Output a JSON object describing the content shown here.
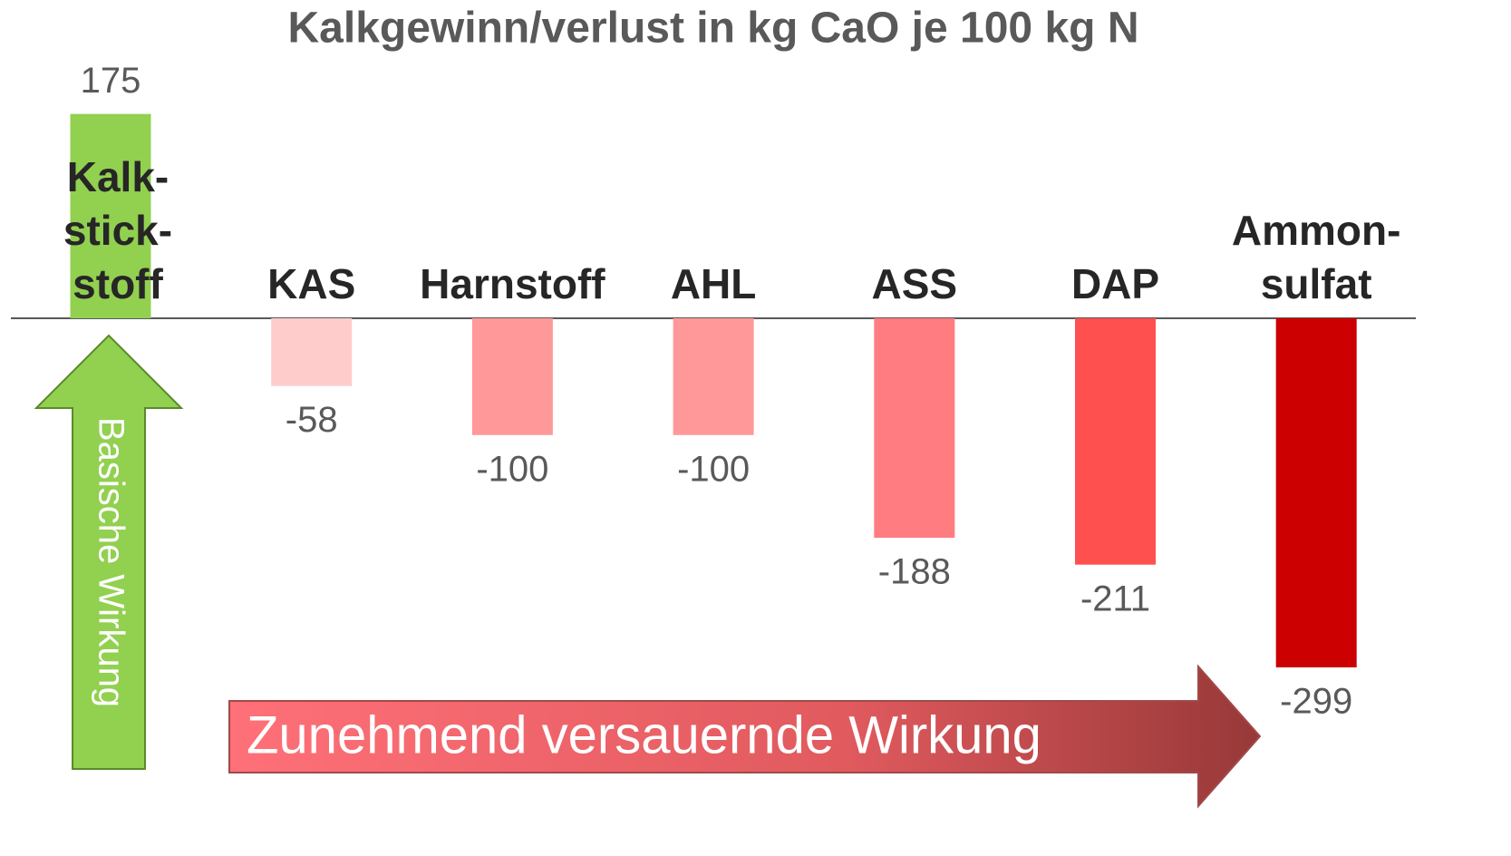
{
  "chart_data": {
    "type": "bar",
    "title": "Kalkgewinn/verlust in kg CaO je 100 kg N",
    "categories": [
      "Kalk-\nstick-\nstoff",
      "KAS",
      "Harnstoff",
      "AHL",
      "ASS",
      "DAP",
      "Ammon-\nsulfat"
    ],
    "values": [
      175,
      -58,
      -100,
      -100,
      -188,
      -211,
      -299
    ],
    "colors": [
      "#92d050",
      "#ffcccc",
      "#ff9999",
      "#ff9999",
      "#ff7c80",
      "#ff5050",
      "#cc0000"
    ],
    "annotations": [
      "Basische Wirkung",
      "Zunehmend versauernde Wirkung"
    ]
  }
}
